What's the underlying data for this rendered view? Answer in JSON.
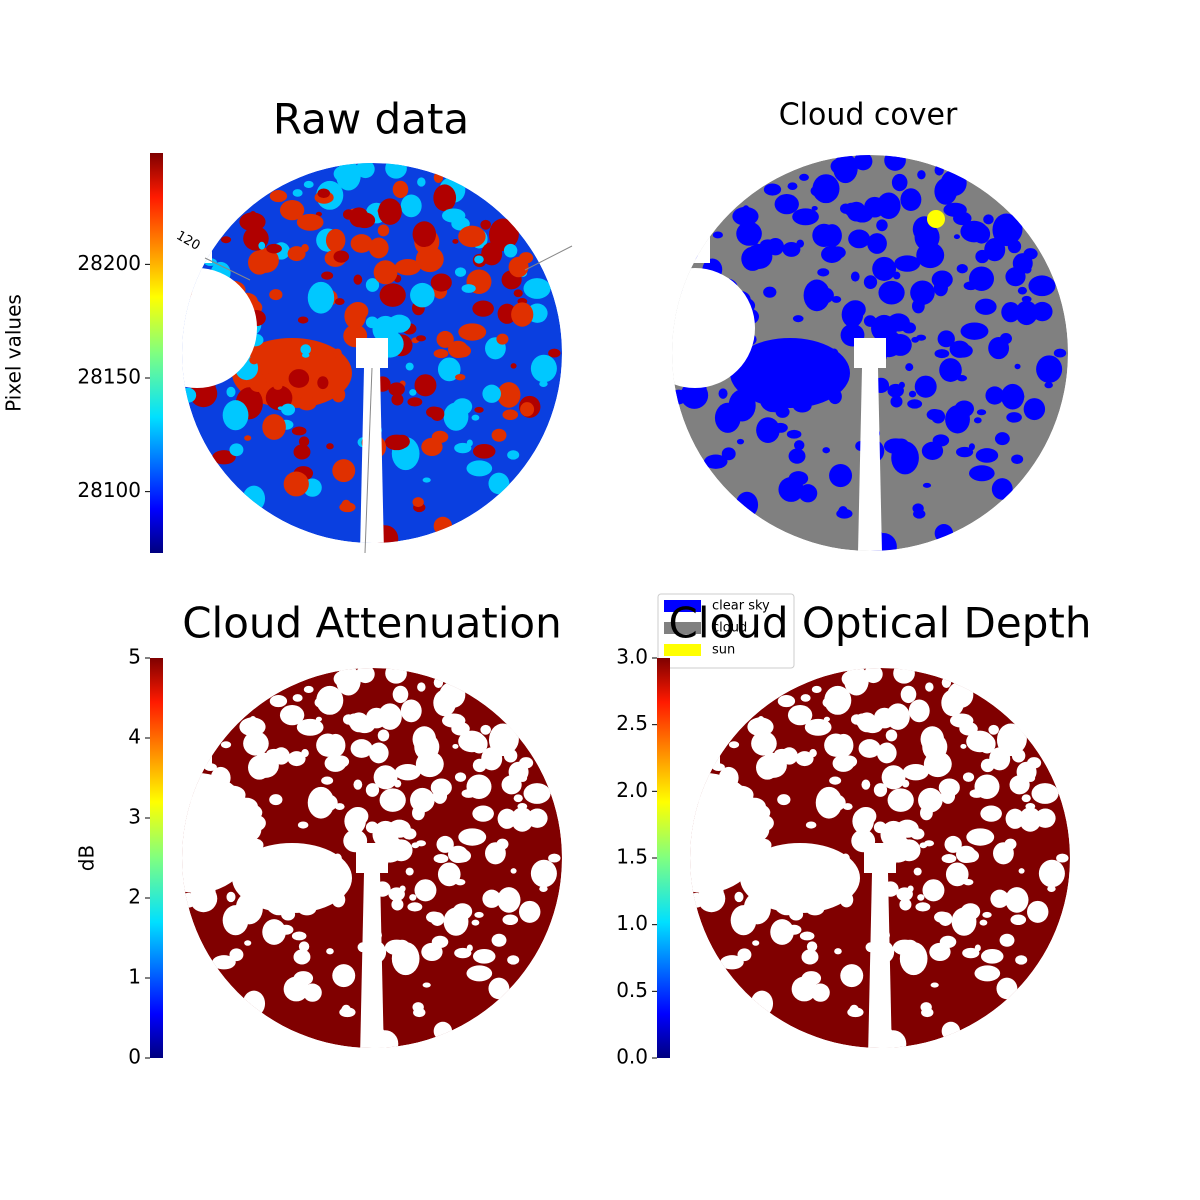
{
  "chart_data": [
    {
      "type": "image",
      "title": "Raw data",
      "colormap": "jet",
      "colorbar": {
        "label": "Pixel values",
        "clim": [
          28073,
          28249
        ],
        "ticks": [
          28100,
          28150,
          28200
        ]
      },
      "annotations": [
        "120"
      ]
    },
    {
      "type": "image",
      "title": "Cloud cover",
      "legend": [
        {
          "name": "clear sky",
          "color": "#0000ff"
        },
        {
          "name": "cloud",
          "color": "#808080"
        },
        {
          "name": "sun",
          "color": "#ffff00"
        }
      ]
    },
    {
      "type": "image",
      "title": "Cloud Attenuation",
      "colormap": "jet",
      "colorbar": {
        "label": "dB",
        "clim": [
          0,
          5
        ],
        "ticks": [
          0,
          1,
          2,
          3,
          4,
          5
        ]
      }
    },
    {
      "type": "image",
      "title": "Cloud Optical Depth",
      "colormap": "jet",
      "colorbar": {
        "clim": [
          0,
          3
        ],
        "ticks": [
          {
            "value": 0,
            "label": "0.0"
          },
          0.5,
          {
            "value": 1,
            "label": "1.0"
          },
          1.5,
          {
            "value": 2,
            "label": "2.0"
          },
          2.5,
          {
            "value": 3,
            "label": "3.0"
          }
        ]
      }
    }
  ]
}
